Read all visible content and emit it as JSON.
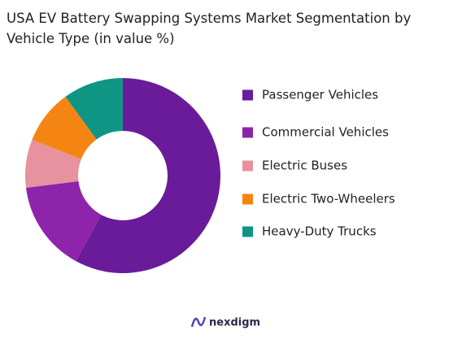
{
  "chart_data": {
    "type": "donut",
    "title": "USA EV Battery Swapping Systems Market Segmentation by Vehicle Type (in value %)",
    "categories": [
      "Passenger Vehicles",
      "Commercial Vehicles",
      "Electric Buses",
      "Electric Two-Wheelers",
      "Heavy-Duty Trucks"
    ],
    "values": [
      58,
      15,
      8,
      9,
      10
    ],
    "colors": [
      "#6a1b9a",
      "#8e24aa",
      "#e8919f",
      "#f58512",
      "#0e9584"
    ],
    "legend": "right",
    "brand": "nexdigm"
  }
}
